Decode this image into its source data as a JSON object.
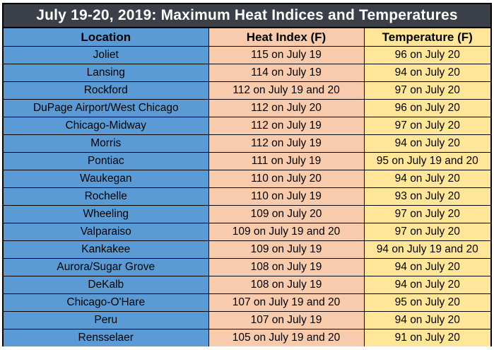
{
  "title": "July 19-20, 2019:  Maximum Heat Indices and Temperatures",
  "headers": {
    "location": "Location",
    "heat_index": "Heat Index (F)",
    "temperature": "Temperature (F)"
  },
  "colors": {
    "title_bg": "#3b3f47",
    "location_col": "#5b9bd5",
    "heat_col": "#f8cbad",
    "temp_col": "#ffe699"
  },
  "rows": [
    {
      "location": "Joliet",
      "heat_index": "115 on July 19",
      "temperature": "96 on July 20"
    },
    {
      "location": "Lansing",
      "heat_index": "114 on July 19",
      "temperature": "94 on July 20"
    },
    {
      "location": "Rockford",
      "heat_index": "112 on July 19 and 20",
      "temperature": "97 on July 20"
    },
    {
      "location": "DuPage Airport/West Chicago",
      "heat_index": "112 on July 20",
      "temperature": "96 on July 20"
    },
    {
      "location": "Chicago-Midway",
      "heat_index": "112 on July 19",
      "temperature": "97 on July 20"
    },
    {
      "location": "Morris",
      "heat_index": "112 on July 19",
      "temperature": "94 on July 20"
    },
    {
      "location": "Pontiac",
      "heat_index": "111 on July 19",
      "temperature": "95 on July 19 and 20"
    },
    {
      "location": "Waukegan",
      "heat_index": "110 on July 20",
      "temperature": "94 on July 20"
    },
    {
      "location": "Rochelle",
      "heat_index": "110 on July 19",
      "temperature": "93 on July 20"
    },
    {
      "location": "Wheeling",
      "heat_index": "109 on July 20",
      "temperature": "97 on July 20"
    },
    {
      "location": "Valparaiso",
      "heat_index": "109 on July 19 and 20",
      "temperature": "97 on July 20"
    },
    {
      "location": "Kankakee",
      "heat_index": "109 on July 19",
      "temperature": "94 on July 19 and 20"
    },
    {
      "location": "Aurora/Sugar Grove",
      "heat_index": "108 on July 19",
      "temperature": "94 on July 20"
    },
    {
      "location": "DeKalb",
      "heat_index": "108 on July 19",
      "temperature": "94 on July 20"
    },
    {
      "location": "Chicago-O'Hare",
      "heat_index": "107 on July 19 and 20",
      "temperature": "95 on July 20"
    },
    {
      "location": "Peru",
      "heat_index": "107 on July 19",
      "temperature": "94 on July 20"
    },
    {
      "location": "Rensselaer",
      "heat_index": "105 on July 19 and 20",
      "temperature": "91 on July 20"
    }
  ]
}
